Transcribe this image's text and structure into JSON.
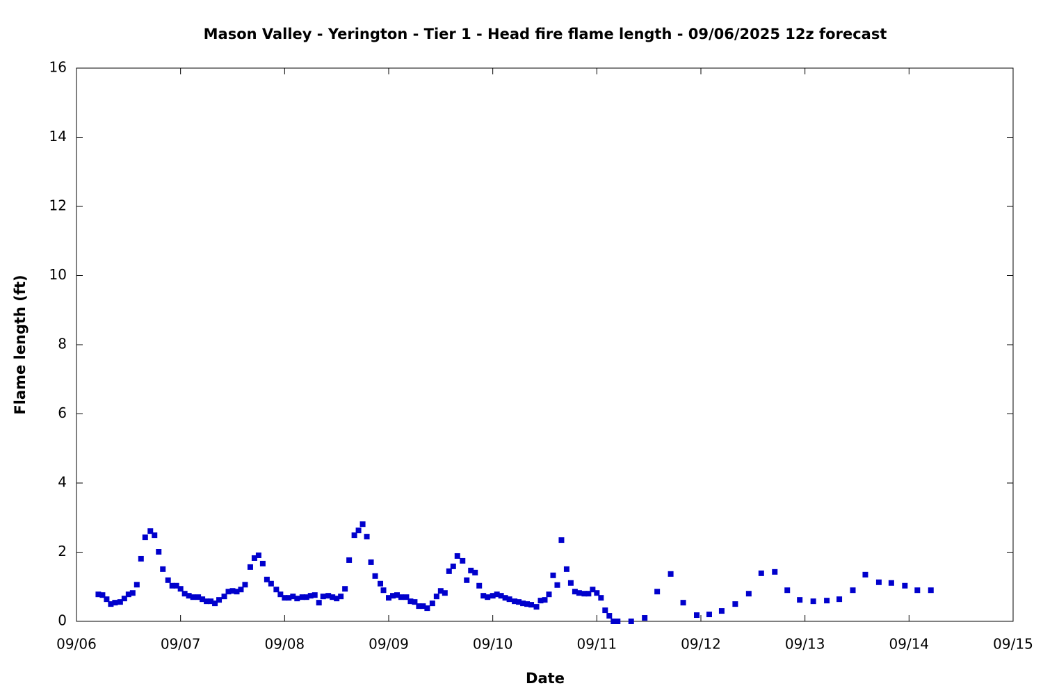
{
  "chart_data": {
    "type": "scatter",
    "title": "Mason Valley - Yerington - Tier 1 - Head fire flame length - 09/06/2025 12z forecast",
    "xlabel": "Date",
    "ylabel": "Flame length (ft)",
    "color": "#0000cc",
    "xlim": [
      6,
      15
    ],
    "xticks": [
      {
        "value": 6,
        "label": "09/06"
      },
      {
        "value": 7,
        "label": "09/07"
      },
      {
        "value": 8,
        "label": "09/08"
      },
      {
        "value": 9,
        "label": "09/09"
      },
      {
        "value": 10,
        "label": "09/10"
      },
      {
        "value": 11,
        "label": "09/11"
      },
      {
        "value": 12,
        "label": "09/12"
      },
      {
        "value": 13,
        "label": "09/13"
      },
      {
        "value": 14,
        "label": "09/14"
      },
      {
        "value": 15,
        "label": "09/15"
      }
    ],
    "ylim": [
      0,
      16
    ],
    "yticks": [
      0,
      2,
      4,
      6,
      8,
      10,
      12,
      14,
      16
    ],
    "x": [
      6.21,
      6.25,
      6.29,
      6.33,
      6.37,
      6.42,
      6.46,
      6.5,
      6.54,
      6.58,
      6.62,
      6.66,
      6.71,
      6.75,
      6.79,
      6.83,
      6.88,
      6.92,
      6.96,
      7.0,
      7.04,
      7.08,
      7.12,
      7.17,
      7.21,
      7.25,
      7.29,
      7.33,
      7.37,
      7.42,
      7.46,
      7.5,
      7.54,
      7.58,
      7.62,
      7.67,
      7.71,
      7.75,
      7.79,
      7.83,
      7.87,
      7.92,
      7.96,
      8.0,
      8.04,
      8.08,
      8.12,
      8.17,
      8.21,
      8.25,
      8.29,
      8.33,
      8.37,
      8.42,
      8.46,
      8.5,
      8.54,
      8.58,
      8.62,
      8.67,
      8.71,
      8.75,
      8.79,
      8.83,
      8.87,
      8.92,
      8.95,
      9.0,
      9.04,
      9.08,
      9.12,
      9.17,
      9.21,
      9.25,
      9.29,
      9.33,
      9.37,
      9.42,
      9.46,
      9.5,
      9.54,
      9.58,
      9.62,
      9.66,
      9.71,
      9.75,
      9.79,
      9.83,
      9.87,
      9.91,
      9.95,
      10.0,
      10.04,
      10.08,
      10.12,
      10.16,
      10.21,
      10.25,
      10.29,
      10.33,
      10.37,
      10.42,
      10.46,
      10.5,
      10.54,
      10.58,
      10.62,
      10.66,
      10.71,
      10.75,
      10.79,
      10.83,
      10.88,
      10.92,
      10.96,
      11.0,
      11.04,
      11.08,
      11.12,
      11.16,
      11.2,
      11.33,
      11.46,
      11.58,
      11.71,
      11.83,
      11.96,
      12.08,
      12.2,
      12.33,
      12.46,
      12.58,
      12.71,
      12.83,
      12.95,
      13.08,
      13.21,
      13.33,
      13.46,
      13.58,
      13.71,
      13.83,
      13.96,
      14.08,
      14.21
    ],
    "values": [
      0.78,
      0.76,
      0.64,
      0.5,
      0.54,
      0.56,
      0.66,
      0.78,
      0.82,
      1.06,
      1.81,
      2.43,
      2.61,
      2.49,
      2.01,
      1.51,
      1.19,
      1.03,
      1.03,
      0.94,
      0.8,
      0.74,
      0.7,
      0.7,
      0.64,
      0.58,
      0.58,
      0.52,
      0.62,
      0.72,
      0.86,
      0.88,
      0.86,
      0.92,
      1.06,
      1.57,
      1.83,
      1.91,
      1.67,
      1.21,
      1.09,
      0.92,
      0.78,
      0.68,
      0.68,
      0.72,
      0.66,
      0.7,
      0.7,
      0.74,
      0.76,
      0.54,
      0.72,
      0.74,
      0.7,
      0.66,
      0.72,
      0.94,
      1.77,
      2.49,
      2.63,
      2.81,
      2.45,
      1.71,
      1.31,
      1.09,
      0.9,
      0.68,
      0.74,
      0.76,
      0.7,
      0.7,
      0.58,
      0.56,
      0.44,
      0.44,
      0.38,
      0.52,
      0.72,
      0.88,
      0.82,
      1.45,
      1.59,
      1.89,
      1.75,
      1.19,
      1.47,
      1.41,
      1.03,
      0.74,
      0.7,
      0.74,
      0.78,
      0.74,
      0.68,
      0.64,
      0.58,
      0.56,
      0.52,
      0.5,
      0.48,
      0.42,
      0.6,
      0.62,
      0.78,
      1.33,
      1.05,
      2.35,
      1.51,
      1.11,
      0.86,
      0.82,
      0.8,
      0.8,
      0.92,
      0.82,
      0.68,
      0.32,
      0.16,
      0,
      0,
      0,
      0.1,
      0.86,
      1.37,
      0.54,
      0.18,
      0.2,
      0.3,
      0.5,
      0.8,
      1.39,
      1.43,
      0.9,
      0.62,
      0.58,
      0.6,
      0.64,
      0.9,
      1.35,
      1.13,
      1.11,
      1.03,
      0.9,
      0.9
    ]
  }
}
